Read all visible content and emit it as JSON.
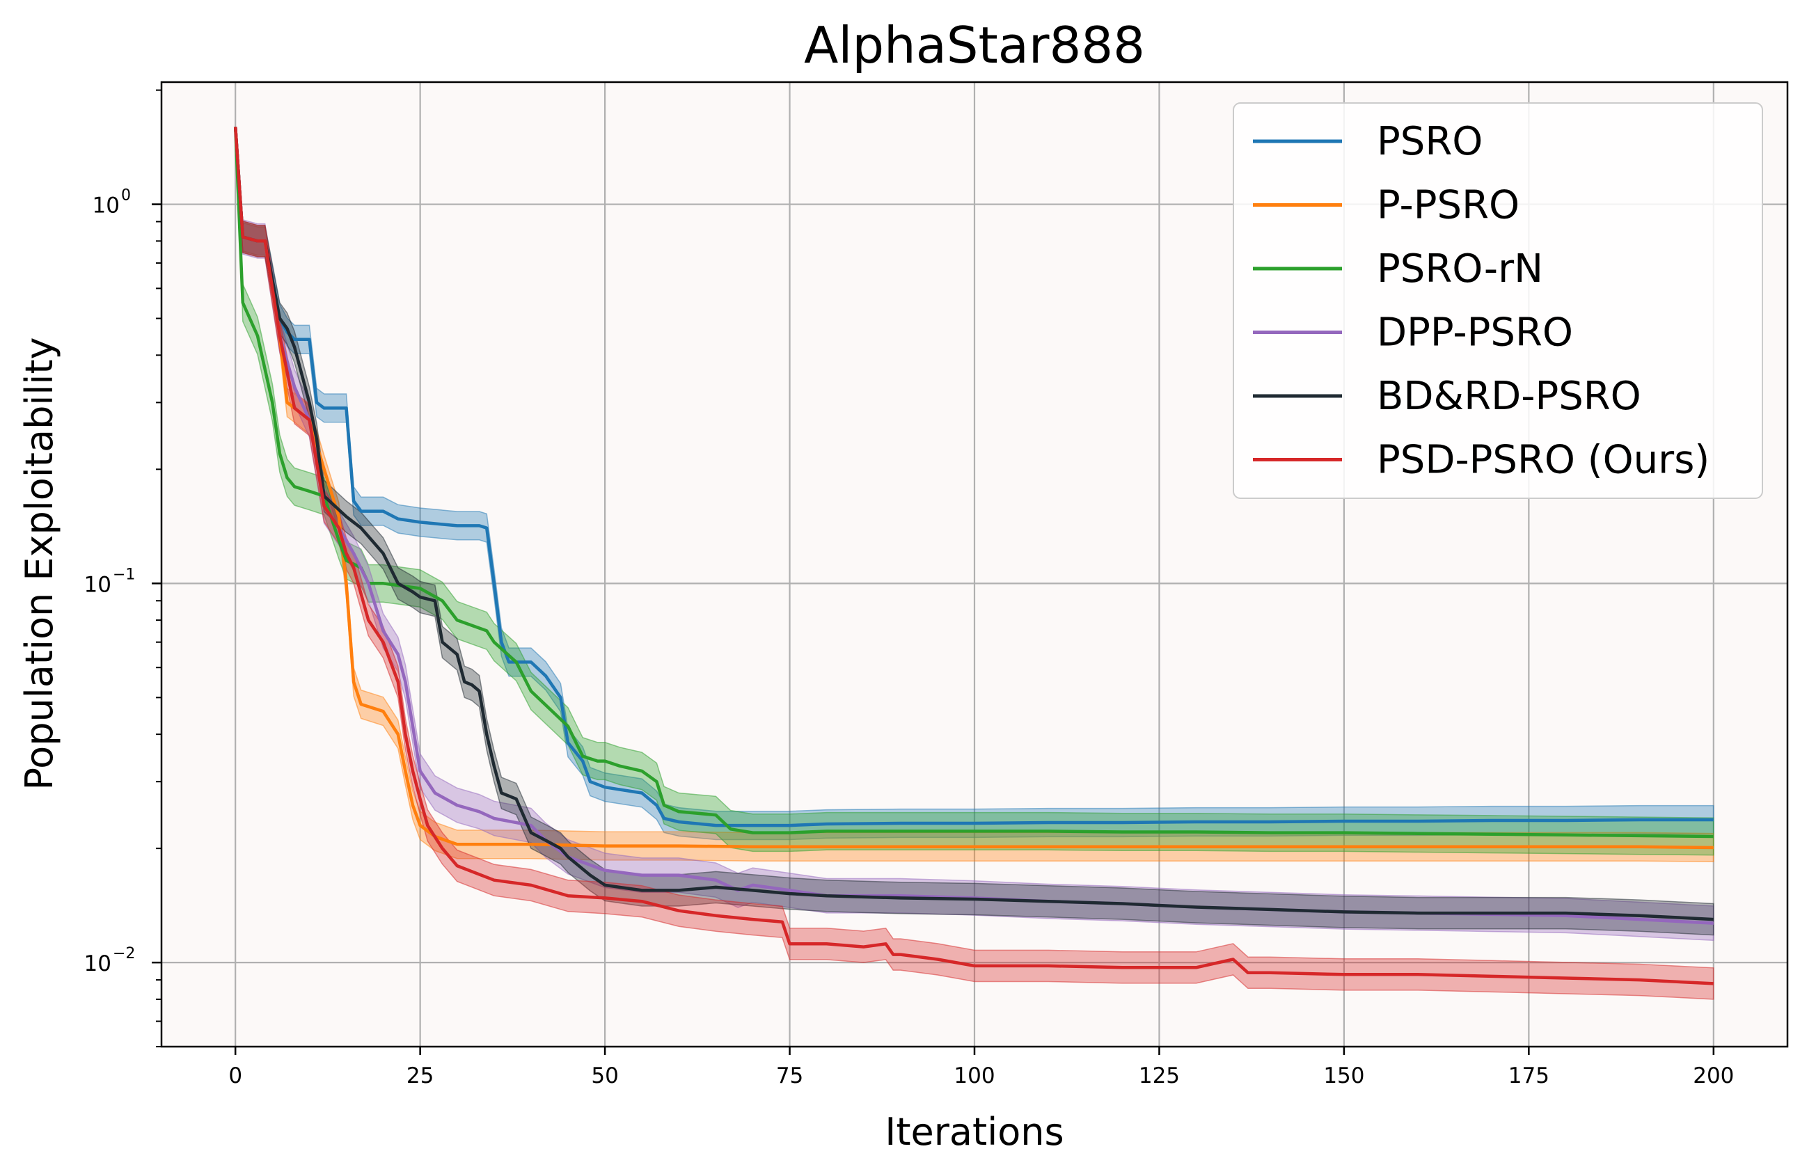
{
  "chart_data": {
    "type": "line",
    "title": "AlphaStar888",
    "xlabel": "Iterations",
    "ylabel": "Population Exploitability",
    "yscale": "log",
    "xlim": [
      -10,
      210
    ],
    "ylim": [
      0.006,
      2.1
    ],
    "grid": true,
    "legend_position": "top-right",
    "x_ticks": [
      0,
      25,
      50,
      75,
      100,
      125,
      150,
      175,
      200
    ],
    "x_tick_labels": [
      "0",
      "25",
      "50",
      "75",
      "100",
      "125",
      "150",
      "175",
      "200"
    ],
    "y_ticks": [
      {
        "value": 1.0,
        "base": "10",
        "exponent": "0"
      },
      {
        "value": 0.1,
        "base": "10",
        "exponent": "−1"
      },
      {
        "value": 0.01,
        "base": "10",
        "exponent": "−2"
      }
    ],
    "series": [
      {
        "name": "PSRO",
        "color": "#1f77b4",
        "x": [
          0,
          1,
          3,
          4,
          6,
          7,
          8,
          10,
          11,
          12,
          15,
          16,
          17,
          20,
          22,
          25,
          30,
          33,
          34,
          35,
          36,
          37,
          40,
          42,
          44,
          45,
          47,
          48,
          50,
          55,
          57,
          58,
          60,
          65,
          70,
          75,
          80,
          90,
          100,
          110,
          120,
          130,
          140,
          150,
          160,
          170,
          180,
          190,
          195,
          200
        ],
        "y": [
          1.6,
          0.82,
          0.8,
          0.8,
          0.5,
          0.46,
          0.44,
          0.44,
          0.3,
          0.29,
          0.29,
          0.165,
          0.155,
          0.155,
          0.148,
          0.145,
          0.142,
          0.142,
          0.14,
          0.1,
          0.07,
          0.062,
          0.062,
          0.057,
          0.05,
          0.038,
          0.034,
          0.03,
          0.029,
          0.028,
          0.026,
          0.024,
          0.0235,
          0.023,
          0.023,
          0.023,
          0.0232,
          0.0233,
          0.0233,
          0.0234,
          0.0234,
          0.0235,
          0.0235,
          0.0236,
          0.0236,
          0.0237,
          0.0237,
          0.0238,
          0.0238,
          0.0238
        ],
        "band": 0.09
      },
      {
        "name": "P-PSRO",
        "color": "#ff7f0e",
        "x": [
          0,
          1,
          3,
          4,
          6,
          7,
          8,
          10,
          12,
          14,
          15,
          16,
          17,
          20,
          22,
          23,
          24,
          25,
          27,
          30,
          35,
          40,
          50,
          60,
          70,
          80,
          90,
          100,
          110,
          120,
          130,
          140,
          150,
          160,
          170,
          180,
          190,
          200
        ],
        "y": [
          1.6,
          0.82,
          0.8,
          0.8,
          0.45,
          0.3,
          0.29,
          0.27,
          0.2,
          0.15,
          0.1,
          0.055,
          0.048,
          0.046,
          0.04,
          0.032,
          0.026,
          0.023,
          0.0215,
          0.0205,
          0.0205,
          0.0205,
          0.0203,
          0.0203,
          0.0202,
          0.0202,
          0.0202,
          0.0202,
          0.0202,
          0.0202,
          0.0202,
          0.0202,
          0.0202,
          0.0202,
          0.0202,
          0.0202,
          0.0202,
          0.0201
        ],
        "band": 0.09
      },
      {
        "name": "PSRO-rN",
        "color": "#2ca02c",
        "x": [
          0,
          1,
          3,
          5,
          6,
          7,
          8,
          10,
          12,
          14,
          15,
          17,
          18,
          20,
          25,
          28,
          30,
          34,
          35,
          38,
          40,
          45,
          47,
          49,
          50,
          52,
          55,
          57,
          58,
          60,
          65,
          67,
          70,
          75,
          80,
          90,
          100,
          110,
          120,
          130,
          140,
          150,
          160,
          170,
          180,
          190,
          200
        ],
        "y": [
          1.6,
          0.55,
          0.45,
          0.3,
          0.22,
          0.19,
          0.18,
          0.175,
          0.17,
          0.13,
          0.115,
          0.11,
          0.1,
          0.1,
          0.097,
          0.09,
          0.08,
          0.075,
          0.07,
          0.062,
          0.052,
          0.042,
          0.035,
          0.034,
          0.034,
          0.033,
          0.032,
          0.03,
          0.026,
          0.025,
          0.0245,
          0.0225,
          0.022,
          0.022,
          0.0222,
          0.0222,
          0.0222,
          0.0222,
          0.0221,
          0.0221,
          0.022,
          0.022,
          0.0219,
          0.0218,
          0.0217,
          0.0216,
          0.0215
        ],
        "band": 0.12
      },
      {
        "name": "DPP-PSRO",
        "color": "#9467bd",
        "x": [
          0,
          1,
          3,
          4,
          6,
          8,
          10,
          12,
          14,
          16,
          18,
          20,
          22,
          23,
          25,
          27,
          30,
          33,
          35,
          40,
          42,
          45,
          50,
          55,
          60,
          65,
          68,
          70,
          75,
          80,
          90,
          100,
          110,
          120,
          130,
          140,
          150,
          160,
          170,
          180,
          190,
          200
        ],
        "y": [
          1.6,
          0.82,
          0.8,
          0.8,
          0.45,
          0.33,
          0.27,
          0.16,
          0.14,
          0.12,
          0.1,
          0.075,
          0.065,
          0.055,
          0.032,
          0.028,
          0.026,
          0.025,
          0.024,
          0.023,
          0.021,
          0.019,
          0.0175,
          0.017,
          0.017,
          0.0165,
          0.0155,
          0.016,
          0.0155,
          0.015,
          0.015,
          0.0148,
          0.0145,
          0.0143,
          0.014,
          0.0138,
          0.0136,
          0.0135,
          0.0134,
          0.0133,
          0.013,
          0.0127
        ],
        "band": 0.11
      },
      {
        "name": "BD&RD-PSRO",
        "color": "#1f2a32",
        "x": [
          0,
          1,
          3,
          4,
          6,
          7,
          8,
          10,
          11,
          12,
          15,
          17,
          20,
          22,
          24,
          25,
          27,
          28,
          30,
          31,
          32,
          33,
          34,
          35,
          36,
          38,
          40,
          42,
          44,
          45,
          48,
          50,
          55,
          60,
          65,
          70,
          75,
          80,
          90,
          100,
          110,
          120,
          130,
          140,
          150,
          160,
          170,
          180,
          190,
          200
        ],
        "y": [
          1.6,
          0.82,
          0.8,
          0.8,
          0.5,
          0.47,
          0.42,
          0.3,
          0.24,
          0.17,
          0.15,
          0.14,
          0.12,
          0.1,
          0.095,
          0.092,
          0.09,
          0.07,
          0.065,
          0.055,
          0.054,
          0.052,
          0.04,
          0.033,
          0.028,
          0.027,
          0.022,
          0.021,
          0.02,
          0.019,
          0.017,
          0.016,
          0.0155,
          0.0155,
          0.0158,
          0.0155,
          0.0152,
          0.015,
          0.0148,
          0.0147,
          0.0145,
          0.0143,
          0.014,
          0.0138,
          0.0136,
          0.0135,
          0.0135,
          0.0135,
          0.0133,
          0.013
        ],
        "band": 0.1
      },
      {
        "name": "PSD-PSRO (Ours)",
        "color": "#d62728",
        "x": [
          0,
          1,
          3,
          4,
          6,
          8,
          10,
          12,
          14,
          15,
          16,
          18,
          20,
          22,
          23,
          24,
          25,
          26,
          28,
          30,
          35,
          40,
          45,
          50,
          55,
          60,
          65,
          70,
          74,
          75,
          76,
          80,
          85,
          88,
          89,
          90,
          95,
          100,
          105,
          110,
          120,
          130,
          135,
          137,
          140,
          150,
          160,
          170,
          180,
          190,
          200
        ],
        "y": [
          1.6,
          0.82,
          0.8,
          0.8,
          0.45,
          0.29,
          0.27,
          0.16,
          0.14,
          0.12,
          0.11,
          0.08,
          0.07,
          0.055,
          0.04,
          0.032,
          0.027,
          0.023,
          0.02,
          0.018,
          0.0165,
          0.016,
          0.015,
          0.0148,
          0.0145,
          0.0137,
          0.0133,
          0.013,
          0.0128,
          0.0112,
          0.0112,
          0.0112,
          0.011,
          0.0112,
          0.0105,
          0.0105,
          0.0102,
          0.0098,
          0.0098,
          0.0098,
          0.0097,
          0.0097,
          0.0102,
          0.0094,
          0.0094,
          0.0093,
          0.0093,
          0.0092,
          0.0091,
          0.009,
          0.0088
        ],
        "band": 0.1
      }
    ]
  }
}
